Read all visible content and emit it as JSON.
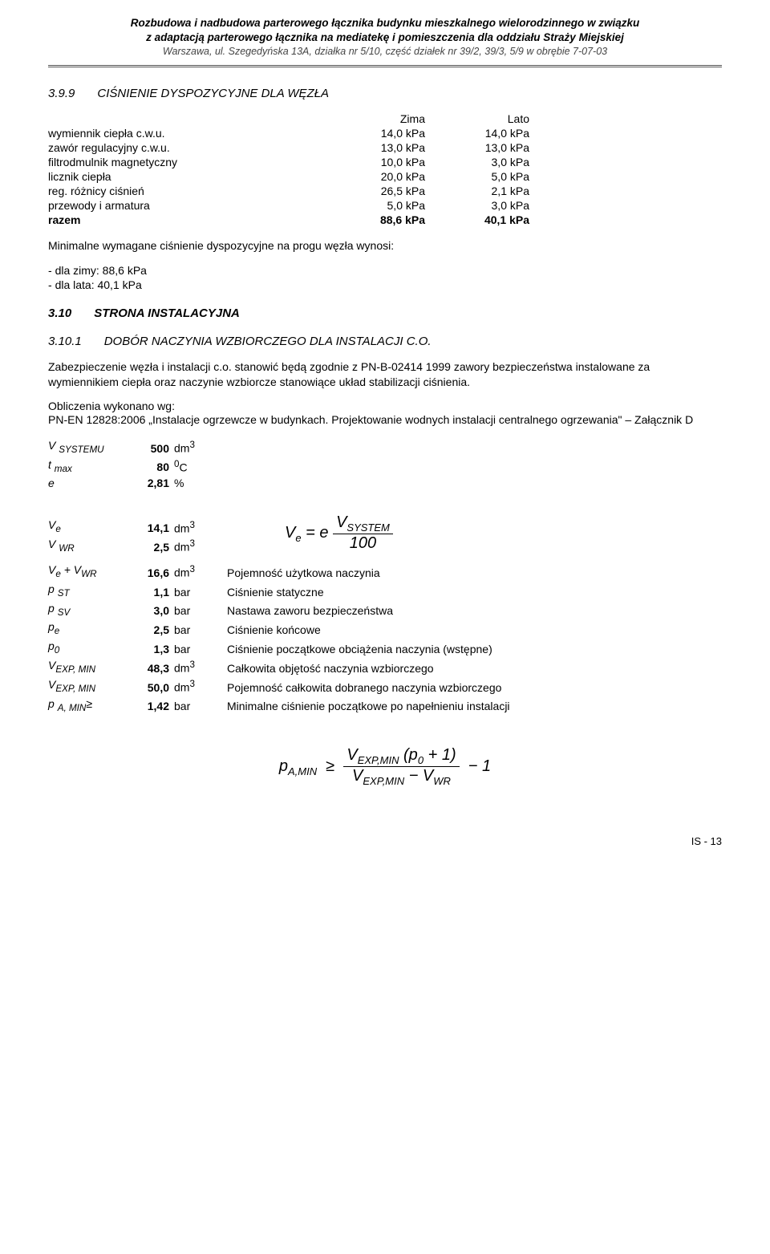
{
  "header": {
    "line1": "Rozbudowa i nadbudowa parterowego łącznika budynku mieszkalnego wielorodzinnego w związku",
    "line2": "z adaptacją parterowego łącznika na mediatekę i pomieszczenia dla oddziału Straży Miejskiej",
    "sub": "Warszawa, ul. Szegedyńska 13A, działka nr 5/10, część działek nr 39/2, 39/3, 5/9 w obrębie 7-07-03"
  },
  "s399": {
    "num": "3.9.9",
    "title": "CIŚNIENIE DYSPOZYCYJNE DLA WĘZŁA",
    "col1": "Zima",
    "col2": "Lato",
    "rows": [
      {
        "label": "wymiennik ciepła c.w.u.",
        "zima": "14,0 kPa",
        "lato": "14,0 kPa"
      },
      {
        "label": "zawór regulacyjny c.w.u.",
        "zima": "13,0 kPa",
        "lato": "13,0 kPa"
      },
      {
        "label": "filtrodmulnik magnetyczny",
        "zima": "10,0 kPa",
        "lato": "3,0 kPa"
      },
      {
        "label": "licznik ciepła",
        "zima": "20,0 kPa",
        "lato": "5,0 kPa"
      },
      {
        "label": "reg. różnicy ciśnień",
        "zima": "26,5 kPa",
        "lato": "2,1 kPa"
      },
      {
        "label": "przewody i armatura",
        "zima": "5,0 kPa",
        "lato": "3,0 kPa"
      }
    ],
    "sum": {
      "label": "razem",
      "zima": "88,6 kPa",
      "lato": "40,1 kPa"
    },
    "minline": "Minimalne wymagane ciśnienie dyspozycyjne na progu węzła wynosi:",
    "items": [
      "dla zimy:   88,6 kPa",
      "dla lata:    40,1 kPa"
    ]
  },
  "s310": {
    "num": "3.10",
    "title": "STRONA INSTALACYJNA"
  },
  "s3101": {
    "num": "3.10.1",
    "title": "DOBÓR NACZYNIA WZBIORCZEGO DLA INSTALACJI C.O.",
    "p1": "Zabezpieczenie węzła i instalacji c.o. stanowić będą zgodnie z PN-B-02414 1999 zawory bezpieczeństwa instalowane za wymiennikiem ciepła oraz naczynie wzbiorcze stanowiące układ stabilizacji ciśnienia.",
    "p2": "Obliczenia wykonano wg:",
    "p3": " PN-EN 12828:2006 „Instalacje ogrzewcze w budynkach. Projektowanie wodnych instalacji centralnego ogrzewania\" – Załącznik D"
  },
  "vessel": {
    "rows1": [
      {
        "sym": "V <sub>SYSTEMU</sub>",
        "v": "500",
        "u": "dm<sup>3</sup>"
      },
      {
        "sym": "t <sub>max</sub>",
        "v": "80",
        "u": "<sup>0</sup>C"
      },
      {
        "sym": "e",
        "v": "2,81",
        "u": "%"
      }
    ],
    "rows2": [
      {
        "sym": "V<sub>e</sub>",
        "v": "14,1",
        "u": "dm<sup>3</sup>",
        "desc": ""
      },
      {
        "sym": "V <sub>WR</sub>",
        "v": "2,5",
        "u": "dm<sup>3</sup>",
        "desc": ""
      },
      {
        "sym": "V<sub>e</sub> + V<sub>WR</sub>",
        "v": "16,6",
        "u": "dm<sup>3</sup>",
        "desc": "Pojemność użytkowa naczynia"
      },
      {
        "sym": "p <sub>ST</sub>",
        "v": "1,1",
        "u": "bar",
        "desc": "Ciśnienie statyczne"
      },
      {
        "sym": "p <sub>SV</sub>",
        "v": "3,0",
        "u": "bar",
        "desc": "Nastawa zaworu bezpieczeństwa"
      },
      {
        "sym": "p<sub>e</sub>",
        "v": "2,5",
        "u": "bar",
        "desc": "Ciśnienie końcowe"
      },
      {
        "sym": "p<sub>0</sub>",
        "v": "1,3",
        "u": "bar",
        "desc": "Ciśnienie początkowe obciążenia naczynia (wstępne)"
      },
      {
        "sym": "V<sub>EXP, MIN</sub>",
        "v": "48,3",
        "u": "dm<sup>3</sup>",
        "desc": "Całkowita objętość naczynia wzbiorczego"
      },
      {
        "sym": "V<sub>EXP, MIN</sub>",
        "v": "50,0",
        "u": "dm<sup>3</sup>",
        "desc": "Pojemność całkowita dobranego naczynia wzbiorczego"
      },
      {
        "sym": "p <sub>A, MIN</sub>≥",
        "v": "1,42",
        "u": "bar",
        "desc": "Minimalne ciśnienie początkowe po napełnieniu instalacji"
      }
    ]
  },
  "footer": "IS - 13"
}
